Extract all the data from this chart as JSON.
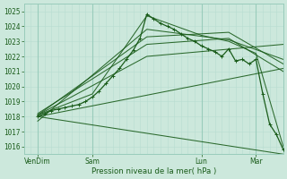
{
  "bg_color": "#cce8dc",
  "grid_minor_color": "#b8ddd0",
  "grid_major_color": "#99ccbb",
  "line_color": "#1a5c1a",
  "xlabel": "Pression niveau de la mer( hPa )",
  "ylim": [
    1015.5,
    1025.5
  ],
  "yticks": [
    1016,
    1017,
    1018,
    1019,
    1020,
    1021,
    1022,
    1023,
    1024,
    1025
  ],
  "xlim": [
    0,
    228
  ],
  "total_hours": 216,
  "xtick_positions": [
    12,
    60,
    156,
    204
  ],
  "xtick_labels": [
    "VenDim",
    "Sam",
    "Lun",
    "Mar"
  ],
  "ensemble_lines": [
    {
      "x": [
        12,
        228
      ],
      "y": [
        1018.0,
        1015.5
      ]
    },
    {
      "x": [
        12,
        228
      ],
      "y": [
        1018.0,
        1021.2
      ]
    },
    {
      "x": [
        12,
        108,
        228
      ],
      "y": [
        1018.1,
        1022.0,
        1022.8
      ]
    },
    {
      "x": [
        12,
        108,
        180,
        228
      ],
      "y": [
        1018.2,
        1022.8,
        1023.2,
        1021.0
      ]
    },
    {
      "x": [
        12,
        108,
        180,
        228
      ],
      "y": [
        1018.1,
        1023.3,
        1023.6,
        1021.5
      ]
    },
    {
      "x": [
        12,
        108,
        180,
        228
      ],
      "y": [
        1017.7,
        1023.8,
        1023.1,
        1021.8
      ]
    },
    {
      "x": [
        12,
        60,
        108,
        156,
        180,
        204,
        228
      ],
      "y": [
        1018.1,
        1019.5,
        1024.7,
        1023.4,
        1023.0,
        1022.2,
        1016.0
      ]
    }
  ],
  "detailed_line_x": [
    12,
    18,
    24,
    30,
    36,
    42,
    48,
    54,
    60,
    66,
    72,
    78,
    84,
    90,
    96,
    102,
    108,
    114,
    120,
    126,
    132,
    138,
    144,
    150,
    156,
    162,
    168,
    174,
    180,
    186,
    192,
    198,
    204,
    210,
    216,
    222,
    228
  ],
  "detailed_line_y": [
    1018.0,
    1018.2,
    1018.4,
    1018.5,
    1018.6,
    1018.7,
    1018.8,
    1019.0,
    1019.3,
    1019.7,
    1020.2,
    1020.7,
    1021.2,
    1021.8,
    1022.4,
    1023.2,
    1024.8,
    1024.5,
    1024.2,
    1024.0,
    1023.8,
    1023.5,
    1023.2,
    1023.0,
    1022.7,
    1022.5,
    1022.3,
    1022.0,
    1022.5,
    1021.7,
    1021.8,
    1021.5,
    1021.8,
    1019.5,
    1017.5,
    1016.8,
    1015.8
  ]
}
